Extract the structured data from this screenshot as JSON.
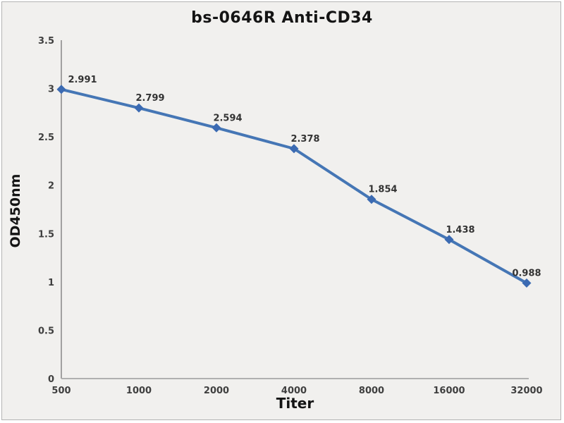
{
  "frame": {
    "background_color": "#f1f0ee",
    "border_color": "#b3b3b3"
  },
  "chart_data": {
    "type": "line",
    "title": "bs-0646R Anti-CD34",
    "xlabel": "Titer",
    "ylabel": "OD450nm",
    "categories": [
      "500",
      "1000",
      "2000",
      "4000",
      "8000",
      "16000",
      "32000"
    ],
    "series": [
      {
        "name": "OD450nm",
        "values": [
          2.991,
          2.799,
          2.594,
          2.378,
          1.854,
          1.438,
          0.988
        ]
      }
    ],
    "data_labels": [
      "2.991",
      "2.799",
      "2.594",
      "2.378",
      "1.854",
      "1.438",
      "0.988"
    ],
    "y_ticks": [
      "0",
      "0.5",
      "1",
      "1.5",
      "2",
      "2.5",
      "3",
      "3.5"
    ],
    "ylim": [
      0,
      3.5
    ],
    "grid": false,
    "legend": "none",
    "marker": "diamond",
    "line_color": "#4576b5",
    "marker_color": "#3b6ab2",
    "y_axis_color": "#7f7f7f",
    "x_axis_color": "#b0b0b0",
    "tick_label_color": "#3f3f3f",
    "data_label_color": "#333333"
  }
}
